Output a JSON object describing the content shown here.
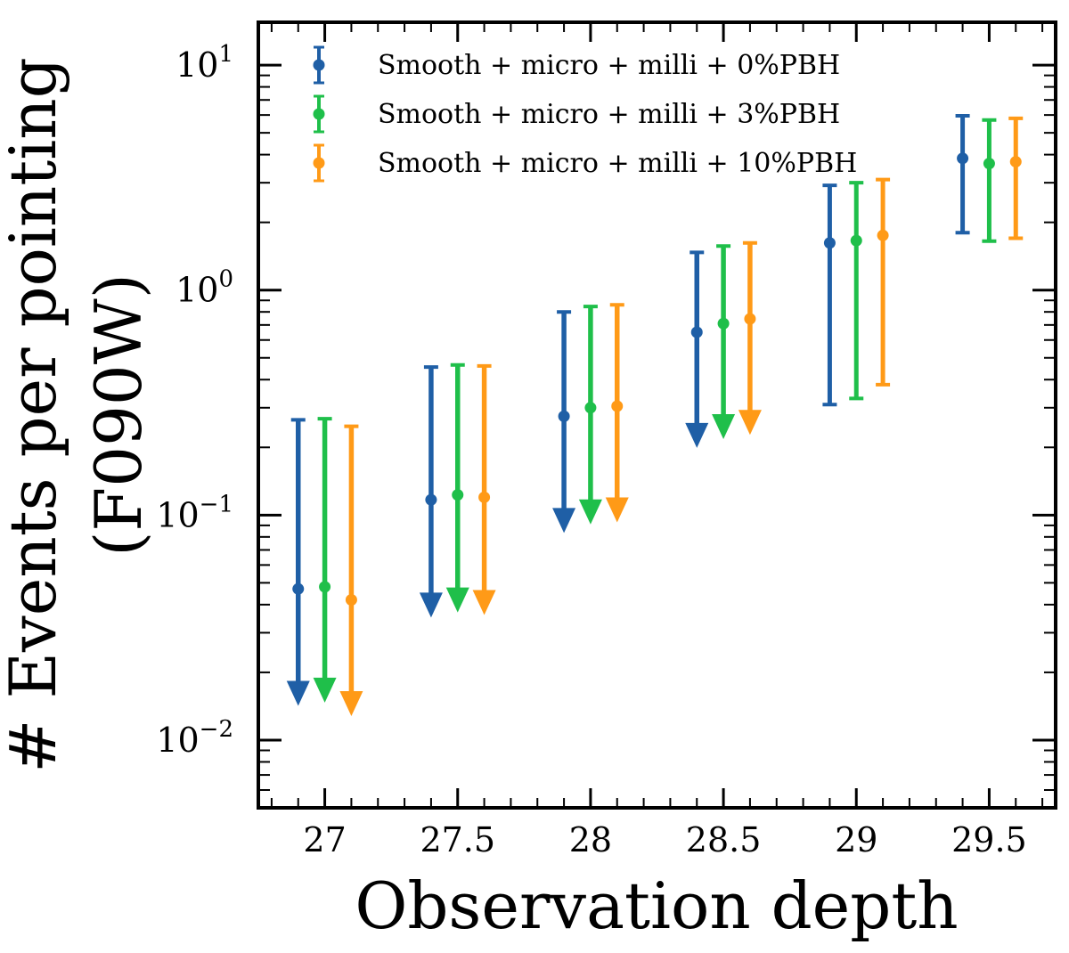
{
  "chart_data": {
    "type": "scatter",
    "subtype": "errorbar-log",
    "xlabel": "Observation depth",
    "ylabel_line1": "# Events per pointing",
    "ylabel_line2": "(F090W)",
    "xlim": [
      26.75,
      29.75
    ],
    "ylim": [
      0.005,
      15.5
    ],
    "yscale": "log",
    "x_ticks": [
      27,
      27.5,
      28,
      28.5,
      29,
      29.5
    ],
    "x_tick_labels": [
      "27",
      "27.5",
      "28",
      "28.5",
      "29",
      "29.5"
    ],
    "y_ticks": [
      0.01,
      0.1,
      1,
      10
    ],
    "y_tick_labels": [
      {
        "base": "10",
        "exp": "−2"
      },
      {
        "base": "10",
        "exp": "−1"
      },
      {
        "base": "10",
        "exp": "0"
      },
      {
        "base": "10",
        "exp": "1"
      }
    ],
    "legend_position": "top-left",
    "series": [
      {
        "name": "Smooth + micro + milli + 0%PBH",
        "color": "#1f5fa6",
        "x": [
          26.9,
          27.4,
          27.9,
          28.4,
          28.9,
          29.4
        ],
        "y": [
          0.047,
          0.117,
          0.275,
          0.65,
          1.62,
          3.85
        ],
        "upper": [
          0.265,
          0.455,
          0.8,
          1.47,
          2.92,
          5.95
        ],
        "lower": [
          0.015,
          0.037,
          0.088,
          0.21,
          0.31,
          1.8
        ],
        "upper_limit_arrow": [
          true,
          true,
          true,
          true,
          false,
          false
        ]
      },
      {
        "name": "Smooth + micro + milli + 3%PBH",
        "color": "#1fbf4a",
        "x": [
          27.0,
          27.5,
          28.0,
          28.5,
          29.0,
          29.5
        ],
        "y": [
          0.048,
          0.123,
          0.3,
          0.71,
          1.66,
          3.65
        ],
        "upper": [
          0.268,
          0.465,
          0.845,
          1.57,
          3.0,
          5.7
        ],
        "lower": [
          0.0155,
          0.039,
          0.096,
          0.23,
          0.33,
          1.65
        ],
        "upper_limit_arrow": [
          true,
          true,
          true,
          true,
          false,
          false
        ]
      },
      {
        "name": "Smooth + micro + milli + 10%PBH",
        "color": "#ff9a17",
        "x": [
          27.1,
          27.6,
          28.1,
          28.6,
          29.1,
          29.6
        ],
        "y": [
          0.042,
          0.12,
          0.305,
          0.745,
          1.75,
          3.72
        ],
        "upper": [
          0.248,
          0.46,
          0.86,
          1.62,
          3.1,
          5.8
        ],
        "lower": [
          0.0135,
          0.038,
          0.098,
          0.24,
          0.38,
          1.7
        ],
        "upper_limit_arrow": [
          true,
          true,
          true,
          true,
          false,
          false
        ]
      }
    ]
  }
}
